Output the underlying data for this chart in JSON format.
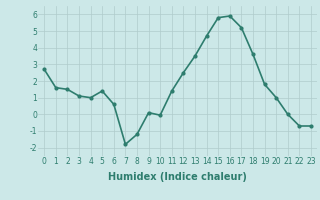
{
  "x": [
    0,
    1,
    2,
    3,
    4,
    5,
    6,
    7,
    8,
    9,
    10,
    11,
    12,
    13,
    14,
    15,
    16,
    17,
    18,
    19,
    20,
    21,
    22,
    23
  ],
  "y": [
    2.7,
    1.6,
    1.5,
    1.1,
    1.0,
    1.4,
    0.6,
    -1.8,
    -1.2,
    0.1,
    -0.05,
    1.4,
    2.5,
    3.5,
    4.7,
    5.8,
    5.9,
    5.2,
    3.6,
    1.8,
    1.0,
    0.0,
    -0.7,
    -0.7
  ],
  "line_color": "#2e7d6e",
  "marker": "o",
  "marker_size": 2,
  "line_width": 1.2,
  "xlabel": "Humidex (Indice chaleur)",
  "xlabel_fontsize": 7,
  "xlabel_fontweight": "bold",
  "ylim": [
    -2.5,
    6.5
  ],
  "xlim": [
    -0.5,
    23.5
  ],
  "yticks": [
    -2,
    -1,
    0,
    1,
    2,
    3,
    4,
    5,
    6
  ],
  "xticks": [
    0,
    1,
    2,
    3,
    4,
    5,
    6,
    7,
    8,
    9,
    10,
    11,
    12,
    13,
    14,
    15,
    16,
    17,
    18,
    19,
    20,
    21,
    22,
    23
  ],
  "bg_color": "#cce8e8",
  "grid_color": "#b0cccc",
  "tick_fontsize": 5.5,
  "fig_bg": "#cce8e8"
}
